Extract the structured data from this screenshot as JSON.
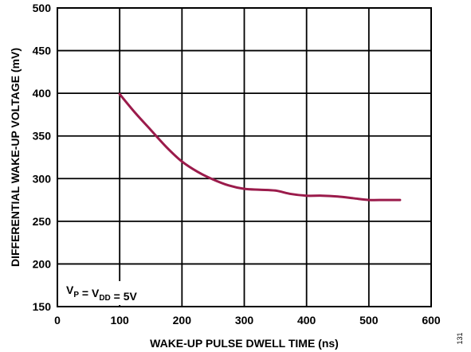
{
  "chart_data": {
    "type": "line",
    "xlabel": "WAKE-UP PULSE DWELL TIME (ns)",
    "ylabel": "DIFFERENTIAL WAKE-UP VOLTAGE (mV)",
    "xlim": [
      0,
      600
    ],
    "ylim": [
      150,
      500
    ],
    "xticks": [
      0,
      100,
      200,
      300,
      400,
      500,
      600
    ],
    "yticks": [
      150,
      200,
      250,
      300,
      350,
      400,
      450,
      500
    ],
    "grid": true,
    "series": [
      {
        "color": "#9b1b4b",
        "x": [
          100,
          125,
          150,
          175,
          200,
          225,
          250,
          275,
          300,
          325,
          350,
          375,
          400,
          425,
          450,
          475,
          500,
          525,
          550
        ],
        "y": [
          399,
          377,
          357,
          337,
          320,
          308,
          299,
          292,
          288,
          287,
          286,
          282,
          280,
          280,
          279,
          277,
          275,
          275,
          275
        ]
      }
    ],
    "annotation": {
      "parts": [
        {
          "text": "V",
          "sub": "P"
        },
        {
          "text": " = V",
          "sub": "DD"
        },
        {
          "text": " = 5V",
          "sub": ""
        }
      ]
    },
    "figure_id": "131"
  }
}
